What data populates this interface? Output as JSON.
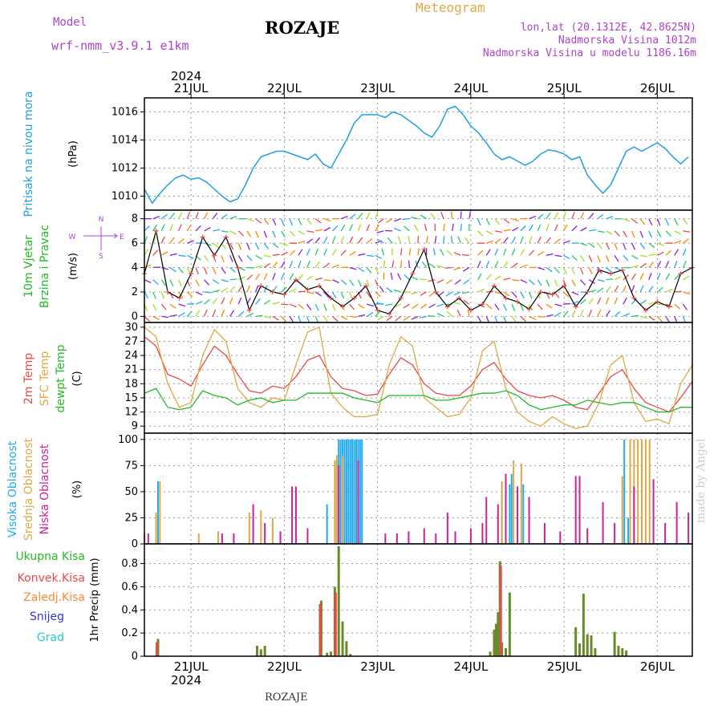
{
  "header": {
    "model_label": "Model",
    "model_name": "wrf-nmm_v3.9.1  e1km",
    "station": "ROZAJE",
    "meteogram_label": "Meteogram",
    "lonlat": "lon,lat (20.1312E, 42.8625N)",
    "elevation": "Nadmorska Visina 1012m",
    "model_elevation": "Nadmorska Visina u modelu 1186.16m",
    "footer_station": "ROZAJE",
    "credit": "made by Angel",
    "year_top": "2024",
    "year_bottom": "2024"
  },
  "colors": {
    "pressure": "#1fa0e0",
    "t2m": "#e84a4a",
    "tsfc": "#e0a845",
    "dewpt": "#22bb22",
    "high_cloud": "#22aaee",
    "mid_cloud": "#e0a845",
    "low_cloud": "#cc2299",
    "precip_total": "#6a8a2a",
    "precip_conv": "#e84a4a"
  },
  "chart_data": [
    {
      "type": "line",
      "name": "pressure",
      "ylabel_lines": [
        "Pritisak na nivou mora"
      ],
      "unit": "(hPa)",
      "ylim": [
        1009,
        1017
      ],
      "yticks": [
        1010,
        1012,
        1014,
        1016
      ],
      "x_range_hours": [
        0,
        141
      ],
      "day_labels": [
        "21JUL",
        "22JUL",
        "23JUL",
        "24JUL",
        "25JUL",
        "26JUL"
      ],
      "day_hours": [
        12,
        36,
        60,
        84,
        108,
        132
      ],
      "series": [
        {
          "x": [
            0,
            2,
            4,
            6,
            8,
            10,
            12,
            14,
            16,
            18,
            20,
            22,
            24,
            26,
            28,
            30,
            32,
            34,
            36,
            38,
            40,
            42,
            44,
            46,
            48,
            50,
            52,
            54,
            56,
            58,
            60,
            62,
            64,
            66,
            68,
            70,
            72,
            74,
            76,
            78,
            80,
            82,
            84,
            86,
            88,
            90,
            92,
            94,
            96,
            98,
            100,
            102,
            104,
            106,
            108,
            110,
            112,
            114,
            116,
            118,
            120,
            122,
            124,
            126,
            128,
            130,
            132,
            134,
            136,
            138,
            140
          ],
          "y": [
            1010.5,
            1009.5,
            1010.2,
            1010.8,
            1011.3,
            1011.5,
            1011.2,
            1011.3,
            1011.0,
            1010.5,
            1010.0,
            1009.6,
            1009.8,
            1010.8,
            1012.0,
            1012.8,
            1013.0,
            1013.2,
            1013.2,
            1013.0,
            1012.8,
            1012.6,
            1013.0,
            1012.3,
            1012.0,
            1013.0,
            1014.0,
            1015.2,
            1015.8,
            1015.8,
            1015.8,
            1015.6,
            1016.0,
            1015.8,
            1015.4,
            1015.0,
            1014.5,
            1014.2,
            1015.0,
            1016.2,
            1016.4,
            1015.8,
            1015.0,
            1014.5,
            1013.8,
            1013.0,
            1012.6,
            1012.8,
            1012.5,
            1012.2,
            1012.5,
            1013.0,
            1013.3,
            1013.2,
            1013.0,
            1012.6,
            1012.8,
            1011.5,
            1010.8,
            1010.2,
            1010.8,
            1012.0,
            1013.2,
            1013.5,
            1013.2,
            1013.5,
            1013.8,
            1013.4,
            1012.8,
            1012.3,
            1012.8
          ]
        }
      ]
    },
    {
      "type": "line",
      "name": "wind",
      "ylabel_lines": [
        "10m Vjetar",
        "Brzina i Pravac"
      ],
      "unit": "(m/s)",
      "compass": [
        "N",
        "E",
        "S",
        "W"
      ],
      "ylim": [
        -0.5,
        8.7
      ],
      "yticks": [
        0,
        2,
        4,
        6,
        8
      ],
      "x_range_hours": [
        0,
        141
      ],
      "series": [
        {
          "name": "wind speed",
          "x": [
            0,
            3,
            6,
            9,
            12,
            15,
            18,
            21,
            24,
            27,
            30,
            33,
            36,
            39,
            42,
            45,
            48,
            51,
            54,
            57,
            60,
            63,
            66,
            69,
            72,
            75,
            78,
            81,
            84,
            87,
            90,
            93,
            96,
            99,
            102,
            105,
            108,
            111,
            114,
            117,
            120,
            123,
            126,
            129,
            132,
            135,
            138,
            141
          ],
          "y": [
            3.5,
            7.0,
            2.0,
            1.5,
            3.5,
            6.5,
            5.0,
            6.5,
            4.0,
            0.5,
            2.5,
            2.0,
            1.8,
            3.0,
            2.2,
            2.5,
            1.5,
            0.8,
            1.5,
            2.5,
            0.5,
            0.2,
            1.5,
            3.5,
            5.5,
            2.0,
            0.8,
            1.5,
            0.5,
            1.0,
            2.5,
            1.5,
            1.2,
            0.6,
            2.0,
            1.8,
            2.5,
            0.8,
            2.0,
            3.8,
            3.5,
            3.8,
            1.5,
            0.5,
            1.2,
            0.8,
            3.5,
            4.0
          ]
        }
      ]
    },
    {
      "type": "line",
      "name": "temperature",
      "ylabel_lines": [
        "2m Temp",
        "SFC Temp",
        "dewpt Temp"
      ],
      "unit": "(C)",
      "ylim": [
        7.5,
        31
      ],
      "yticks": [
        9,
        12,
        15,
        18,
        21,
        24,
        27,
        30
      ],
      "x_range_hours": [
        0,
        141
      ],
      "series": [
        {
          "name": "2m Temp",
          "x": [
            0,
            3,
            6,
            9,
            12,
            15,
            18,
            21,
            24,
            27,
            30,
            33,
            36,
            39,
            42,
            45,
            48,
            51,
            54,
            57,
            60,
            63,
            66,
            69,
            72,
            75,
            78,
            81,
            84,
            87,
            90,
            93,
            96,
            99,
            102,
            105,
            108,
            111,
            114,
            117,
            120,
            123,
            126,
            129,
            132,
            135,
            138,
            141
          ],
          "y": [
            28,
            26,
            20,
            19,
            17.5,
            22,
            26,
            24,
            20,
            16.5,
            16,
            17.5,
            17,
            19.5,
            23,
            24,
            19.5,
            17,
            16.5,
            15.5,
            15.8,
            20,
            23.5,
            22,
            18,
            16,
            15.5,
            15.5,
            17.5,
            21,
            22.5,
            19,
            16.5,
            15.5,
            15,
            15.5,
            14.5,
            13,
            12.5,
            16,
            19.5,
            21,
            17,
            14,
            13,
            12,
            15,
            18.5
          ]
        },
        {
          "name": "SFC Temp",
          "x": [
            0,
            3,
            6,
            9,
            12,
            15,
            18,
            21,
            24,
            27,
            30,
            33,
            36,
            39,
            42,
            45,
            48,
            51,
            54,
            57,
            60,
            63,
            66,
            69,
            72,
            75,
            78,
            81,
            84,
            87,
            90,
            93,
            96,
            99,
            102,
            105,
            108,
            111,
            114,
            117,
            120,
            123,
            126,
            129,
            132,
            135,
            138,
            141
          ],
          "y": [
            30,
            28,
            18,
            13,
            14,
            24,
            29.5,
            27,
            17,
            14,
            13,
            15,
            14.5,
            22,
            29,
            30,
            16,
            13,
            11,
            11,
            11.5,
            22,
            28,
            26,
            15,
            13,
            11,
            11.5,
            15,
            25,
            27,
            17,
            12,
            10,
            9,
            11,
            9.5,
            8.5,
            9,
            14,
            22,
            24,
            14,
            10,
            10.5,
            9.5,
            18,
            22
          ]
        },
        {
          "name": "dewpt Temp",
          "x": [
            0,
            3,
            6,
            9,
            12,
            15,
            18,
            21,
            24,
            27,
            30,
            33,
            36,
            39,
            42,
            45,
            48,
            51,
            54,
            57,
            60,
            63,
            66,
            69,
            72,
            75,
            78,
            81,
            84,
            87,
            90,
            93,
            96,
            99,
            102,
            105,
            108,
            111,
            114,
            117,
            120,
            123,
            126,
            129,
            132,
            135,
            138,
            141
          ],
          "y": [
            16,
            17,
            13,
            12.5,
            13,
            16.5,
            15.5,
            15,
            13.5,
            14.5,
            15,
            14,
            14.5,
            14.5,
            16,
            16,
            16,
            16,
            15,
            14.5,
            14,
            15.5,
            15.5,
            15.5,
            15.5,
            14.5,
            14.5,
            15,
            15.5,
            16,
            16,
            16.5,
            15.5,
            13.5,
            12.5,
            13,
            13.5,
            13.5,
            14.5,
            14,
            13.5,
            14,
            14,
            13,
            12,
            12,
            13,
            13
          ]
        }
      ]
    },
    {
      "type": "bar",
      "name": "clouds",
      "ylabel_lines": [
        "Visoka Oblacnost",
        "Srednja Oblacnost",
        "Niska Oblacnost"
      ],
      "unit": "(%)",
      "ylim": [
        0,
        106
      ],
      "yticks": [
        0,
        25,
        50,
        75,
        100
      ],
      "x_range_hours": [
        0,
        141
      ],
      "series": [
        {
          "name": "Visoka Oblacnost",
          "x": [
            3.5,
            47,
            49.5,
            50,
            50.5,
            51,
            51.5,
            52,
            52.5,
            53,
            53.5,
            54,
            54.5,
            55,
            55.5,
            56,
            92,
            93,
            94,
            94.5,
            97.5,
            123.5,
            124.5
          ],
          "y": [
            60,
            38,
            80,
            100,
            100,
            100,
            100,
            100,
            100,
            100,
            100,
            100,
            100,
            100,
            100,
            100,
            48,
            67,
            57,
            67,
            57,
            100,
            25
          ]
        },
        {
          "name": "Srednja Oblacnost",
          "x": [
            0,
            3,
            4,
            14,
            19,
            27,
            30,
            33,
            49,
            49.5,
            51,
            92,
            95,
            97,
            123,
            125,
            126,
            127,
            128,
            129,
            130
          ],
          "y": [
            10,
            30,
            60,
            10,
            12,
            30,
            32,
            25,
            80,
            85,
            84,
            60,
            80,
            77,
            65,
            100,
            100,
            100,
            100,
            100,
            100
          ]
        },
        {
          "name": "Niska Oblacnost",
          "x": [
            1,
            20,
            23,
            28,
            31,
            35,
            38,
            39,
            42,
            50,
            55,
            62,
            65,
            68,
            72,
            75,
            78,
            80,
            84,
            87,
            88,
            91,
            93,
            96,
            99,
            103,
            107,
            111,
            112,
            114,
            118,
            121,
            126,
            131,
            134,
            137,
            140
          ],
          "y": [
            10,
            10,
            10,
            38,
            20,
            12,
            55,
            55,
            15,
            75,
            80,
            10,
            10,
            12,
            15,
            10,
            30,
            12,
            15,
            20,
            45,
            38,
            67,
            55,
            45,
            20,
            12,
            65,
            65,
            15,
            40,
            20,
            55,
            62,
            20,
            40,
            30
          ]
        }
      ]
    },
    {
      "type": "bar",
      "name": "precipitation",
      "ylabel_lines": [
        "Ukupna Kisa",
        "Konvek.Kisa",
        "Zaledj.Kisa",
        "Snijeg",
        "Grad"
      ],
      "unit": "1hr Precip (mm)",
      "ylim": [
        0,
        0.97
      ],
      "yticks": [
        0,
        0.2,
        0.4,
        0.6,
        0.8
      ],
      "x_range_hours": [
        0,
        141
      ],
      "series": [
        {
          "name": "Ukupna Kisa",
          "x": [
            3.5,
            29,
            30,
            31,
            45.5,
            47,
            48,
            49,
            50,
            51,
            52,
            53,
            89,
            90,
            90.5,
            91,
            91.5,
            92,
            93,
            94,
            111,
            112,
            113,
            114,
            115,
            116,
            121,
            122,
            123,
            124
          ],
          "y": [
            0.15,
            0.09,
            0.06,
            0.09,
            0.48,
            0.03,
            0.04,
            0.6,
            0.95,
            0.3,
            0.13,
            0.02,
            0.04,
            0.23,
            0.28,
            0.38,
            0.82,
            0.12,
            0.07,
            0.55,
            0.25,
            0.11,
            0.54,
            0.19,
            0.18,
            0.07,
            0.21,
            0.09,
            0.07,
            0.05
          ]
        },
        {
          "name": "Konvek.Kisa",
          "x": [
            3.2,
            45.2,
            49.2,
            91.7
          ],
          "y": [
            0.12,
            0.45,
            0.55,
            0.78
          ]
        }
      ]
    }
  ]
}
